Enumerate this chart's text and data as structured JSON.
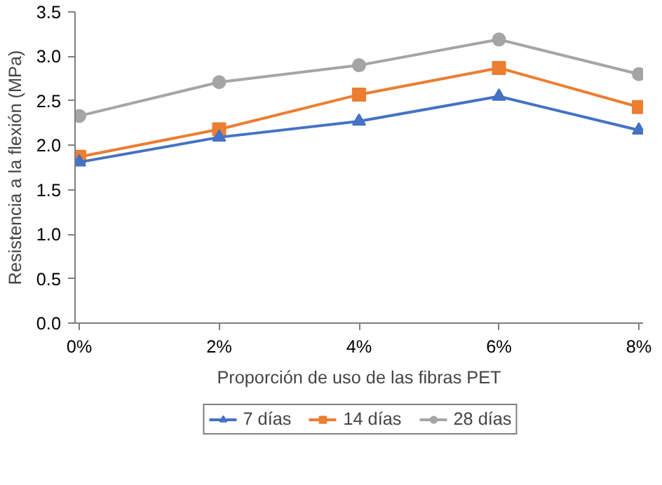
{
  "chart_data": {
    "type": "line",
    "xlabel": "Proporción de uso de las fibras PET",
    "ylabel": "Resistencia a la flexión (MPa)",
    "categories": [
      "0%",
      "2%",
      "4%",
      "6%",
      "8%"
    ],
    "series": [
      {
        "name": "7 días",
        "color": "#4472c4",
        "marker": "triangle",
        "values": [
          1.81,
          2.09,
          2.27,
          2.55,
          2.17
        ]
      },
      {
        "name": "14 días",
        "color": "#ed7d31",
        "marker": "square",
        "values": [
          1.87,
          2.18,
          2.57,
          2.87,
          2.43
        ]
      },
      {
        "name": "28 días",
        "color": "#a5a5a5",
        "marker": "circle",
        "values": [
          2.33,
          2.71,
          2.9,
          3.19,
          2.8
        ]
      }
    ],
    "ylim": [
      0,
      3.5
    ],
    "yticks": [
      {
        "value": 0,
        "label": "0.0"
      },
      {
        "value": 0.5,
        "label": "0.5"
      },
      {
        "value": 1,
        "label": "1.0"
      },
      {
        "value": 1.5,
        "label": "1.5"
      },
      {
        "value": 2,
        "label": "2.0"
      },
      {
        "value": 2.5,
        "label": "2.5"
      },
      {
        "value": 3,
        "label": "3.0"
      },
      {
        "value": 3.5,
        "label": "3.5"
      }
    ],
    "grid": false,
    "legend": "bottom",
    "line_style": "solid"
  }
}
